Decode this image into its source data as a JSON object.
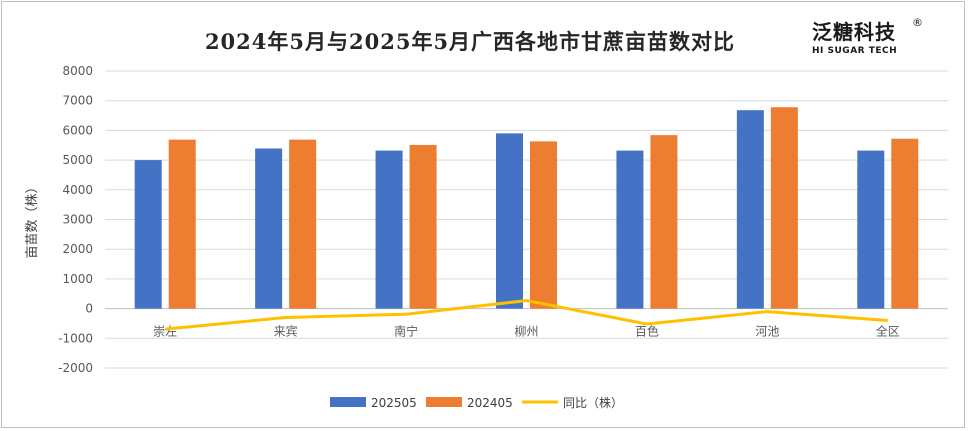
{
  "chart_data": {
    "type": "bar",
    "title": "2024年5月与2025年5月广西各地市甘蔗亩苗数对比",
    "ylabel": "亩苗数（株）",
    "xlabel": "",
    "categories": [
      "崇左",
      "来宾",
      "南宁",
      "柳州",
      "百色",
      "河池",
      "全区"
    ],
    "series": [
      {
        "name": "202505",
        "type": "bar",
        "color": "#4472c4",
        "values": [
          5000,
          5390,
          5320,
          5900,
          5320,
          6680,
          5320
        ]
      },
      {
        "name": "202405",
        "type": "bar",
        "color": "#ed7d31",
        "values": [
          5690,
          5690,
          5510,
          5630,
          5840,
          6780,
          5720
        ]
      },
      {
        "name": "同比（株）",
        "type": "line",
        "color": "#ffc000",
        "values": [
          -690,
          -300,
          -190,
          270,
          -520,
          -100,
          -400
        ]
      }
    ],
    "ylim": [
      -2000,
      8000
    ],
    "yticks": [
      -2000,
      -1000,
      0,
      1000,
      2000,
      3000,
      4000,
      5000,
      6000,
      7000,
      8000
    ],
    "grid": true,
    "legend_position": "bottom"
  },
  "logo": {
    "name_cn": "泛糖科技",
    "name_en": "HI SUGAR TECH",
    "reg_mark": "®"
  }
}
